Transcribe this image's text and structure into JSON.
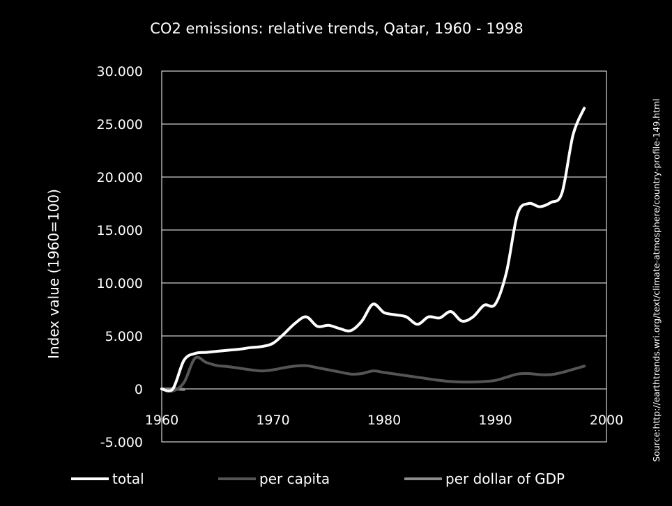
{
  "chart_data": {
    "type": "line",
    "title": "CO2 emissions: relative trends, Qatar, 1960 - 1998",
    "xlabel": "",
    "ylabel": "Index value (1960=100)",
    "source": "Source:http://earthtrends.wri.org/text/climate-atmosphere/country-profile-149.html",
    "xlim": [
      1960,
      2000
    ],
    "ylim": [
      -5000,
      30000
    ],
    "x_ticks": [
      1960,
      1970,
      1980,
      1990,
      2000
    ],
    "x_tick_labels": [
      "1960",
      "1970",
      "1980",
      "1990",
      "2000"
    ],
    "y_ticks": [
      -5000,
      0,
      5000,
      10000,
      15000,
      20000,
      25000,
      30000
    ],
    "y_tick_labels": [
      "-5.000",
      "0",
      "5.000",
      "10.000",
      "15.000",
      "20.000",
      "25.000",
      "30.000"
    ],
    "grid": "horizontal",
    "legend_position": "bottom",
    "series": [
      {
        "name": "total",
        "color": "#ffffff",
        "x": [
          1960,
          1961,
          1962,
          1963,
          1964,
          1965,
          1966,
          1967,
          1968,
          1969,
          1970,
          1971,
          1972,
          1973,
          1974,
          1975,
          1976,
          1977,
          1978,
          1979,
          1980,
          1981,
          1982,
          1983,
          1984,
          1985,
          1986,
          1987,
          1988,
          1989,
          1990,
          1991,
          1992,
          1993,
          1994,
          1995,
          1996,
          1997,
          1998
        ],
        "values": [
          0,
          0,
          2700,
          3350,
          3450,
          3550,
          3650,
          3750,
          3900,
          4000,
          4300,
          5200,
          6200,
          6800,
          5900,
          6000,
          5700,
          5500,
          6400,
          8000,
          7200,
          7000,
          6800,
          6100,
          6800,
          6700,
          7300,
          6400,
          6800,
          7900,
          8000,
          11000,
          16500,
          17500,
          17200,
          17600,
          18500,
          24000,
          26500
        ]
      },
      {
        "name": "per capita",
        "color": "#555555",
        "x": [
          1960,
          1961,
          1962,
          1963,
          1964,
          1965,
          1966,
          1967,
          1968,
          1969,
          1970,
          1971,
          1972,
          1973,
          1974,
          1975,
          1976,
          1977,
          1978,
          1979,
          1980,
          1981,
          1982,
          1983,
          1984,
          1985,
          1986,
          1987,
          1988,
          1989,
          1990,
          1991,
          1992,
          1993,
          1994,
          1995,
          1996,
          1997,
          1998
        ],
        "values": [
          0,
          -200,
          600,
          2900,
          2500,
          2200,
          2100,
          1950,
          1800,
          1700,
          1800,
          2000,
          2150,
          2200,
          2000,
          1800,
          1600,
          1400,
          1450,
          1700,
          1550,
          1400,
          1250,
          1100,
          950,
          800,
          700,
          650,
          650,
          700,
          800,
          1100,
          1400,
          1450,
          1350,
          1350,
          1550,
          1850,
          2150
        ]
      },
      {
        "name": "per dollar of GDP",
        "color": "#8c8c8c",
        "x": [
          1960,
          1961,
          1962
        ],
        "values": [
          0,
          0,
          -50
        ]
      }
    ]
  }
}
